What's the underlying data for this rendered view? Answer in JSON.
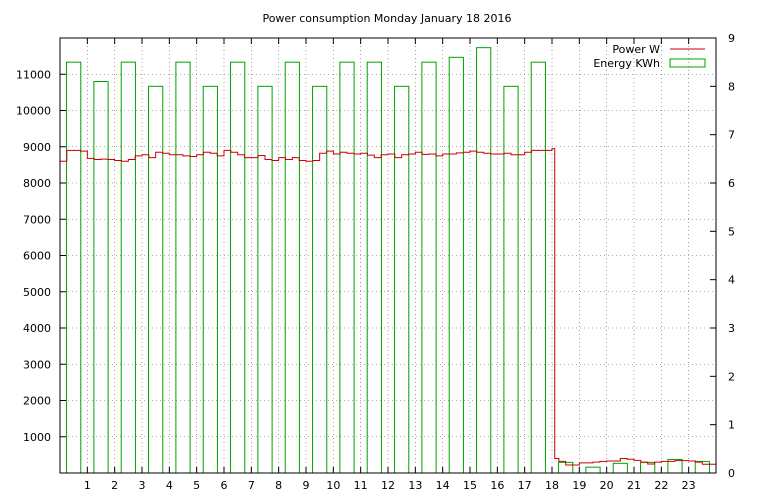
{
  "chart_data": {
    "type": "bar",
    "title": "Power consumption Monday January 18 2016",
    "xlabel": "",
    "xlim": [
      0,
      24
    ],
    "x_ticks": [
      1,
      2,
      3,
      4,
      5,
      6,
      7,
      8,
      9,
      10,
      11,
      12,
      13,
      14,
      15,
      16,
      17,
      18,
      19,
      20,
      21,
      22,
      23
    ],
    "y_left": {
      "label": "",
      "lim": [
        0,
        12000
      ],
      "ticks": [
        1000,
        2000,
        3000,
        4000,
        5000,
        6000,
        7000,
        8000,
        9000,
        10000,
        11000
      ]
    },
    "y_right": {
      "label": "",
      "lim": [
        0,
        9
      ],
      "ticks": [
        0,
        1,
        2,
        3,
        4,
        5,
        6,
        7,
        8,
        9
      ]
    },
    "grid": true,
    "legend_position": "top-right",
    "series": [
      {
        "name": "Power W",
        "type": "line",
        "axis": "left",
        "color": "#cc0000",
        "x": [
          0.0,
          0.25,
          0.5,
          0.75,
          1.0,
          1.25,
          1.5,
          1.75,
          2.0,
          2.25,
          2.5,
          2.75,
          3.0,
          3.25,
          3.5,
          3.75,
          4.0,
          4.25,
          4.5,
          4.75,
          5.0,
          5.25,
          5.5,
          5.75,
          6.0,
          6.25,
          6.5,
          6.75,
          7.0,
          7.25,
          7.5,
          7.75,
          8.0,
          8.25,
          8.5,
          8.75,
          9.0,
          9.25,
          9.5,
          9.75,
          10.0,
          10.25,
          10.5,
          10.75,
          11.0,
          11.25,
          11.5,
          11.75,
          12.0,
          12.25,
          12.5,
          12.75,
          13.0,
          13.25,
          13.5,
          13.75,
          14.0,
          14.25,
          14.5,
          14.75,
          15.0,
          15.25,
          15.5,
          15.75,
          16.0,
          16.25,
          16.5,
          16.75,
          17.0,
          17.25,
          17.5,
          17.75,
          18.0,
          18.1,
          18.25,
          18.5,
          18.75,
          19.0,
          19.25,
          19.5,
          19.75,
          20.0,
          20.25,
          20.5,
          20.75,
          21.0,
          21.25,
          21.5,
          21.75,
          22.0,
          22.25,
          22.5,
          22.75,
          23.0,
          23.25,
          23.5,
          23.75,
          24.0
        ],
        "y": [
          8600,
          8900,
          8900,
          8880,
          8680,
          8650,
          8660,
          8650,
          8620,
          8600,
          8650,
          8750,
          8780,
          8700,
          8850,
          8820,
          8780,
          8780,
          8750,
          8730,
          8780,
          8850,
          8820,
          8750,
          8900,
          8850,
          8780,
          8700,
          8700,
          8760,
          8650,
          8620,
          8700,
          8650,
          8700,
          8620,
          8600,
          8620,
          8820,
          8880,
          8800,
          8850,
          8820,
          8800,
          8820,
          8770,
          8700,
          8780,
          8800,
          8700,
          8780,
          8800,
          8850,
          8790,
          8800,
          8750,
          8800,
          8800,
          8830,
          8850,
          8880,
          8850,
          8820,
          8800,
          8800,
          8820,
          8780,
          8780,
          8850,
          8900,
          8900,
          8900,
          8950,
          400,
          320,
          220,
          220,
          280,
          280,
          300,
          320,
          330,
          330,
          400,
          380,
          350,
          300,
          250,
          300,
          320,
          320,
          340,
          340,
          330,
          300,
          240,
          240,
          250
        ]
      },
      {
        "name": "Energy KWh",
        "type": "bar",
        "axis": "right",
        "color": "#00a000",
        "x": [
          0,
          1,
          2,
          3,
          4,
          5,
          6,
          7,
          8,
          9,
          10,
          11,
          12,
          13,
          14,
          15,
          16,
          17,
          18,
          19,
          20,
          21,
          22,
          23
        ],
        "values": [
          8.5,
          8.1,
          8.5,
          8.0,
          8.5,
          8.0,
          8.5,
          8.0,
          8.5,
          8.0,
          8.5,
          8.5,
          8.0,
          8.5,
          8.6,
          8.8,
          8.0,
          8.5,
          0.22,
          0.12,
          0.2,
          0.22,
          0.28,
          0.24
        ]
      }
    ]
  }
}
